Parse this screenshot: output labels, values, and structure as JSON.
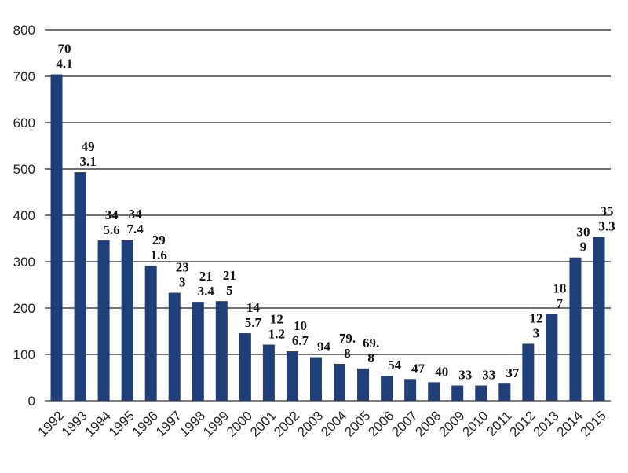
{
  "chart_data": {
    "type": "bar",
    "title": "",
    "xlabel": "",
    "ylabel": "",
    "ylim": [
      0,
      800
    ],
    "yticks": [
      0,
      100,
      200,
      300,
      400,
      500,
      600,
      700,
      800
    ],
    "grid": true,
    "bar_color": "#1f3f7a",
    "categories": [
      "1992",
      "1993",
      "1994",
      "1995",
      "1996",
      "1997",
      "1998",
      "1999",
      "2000",
      "2001",
      "2002",
      "2003",
      "2004",
      "2005",
      "2006",
      "2007",
      "2008",
      "2009",
      "2010",
      "2011",
      "2012",
      "2013",
      "2014",
      "2015"
    ],
    "values": [
      704.1,
      493.1,
      345.6,
      347.4,
      291.6,
      233,
      213.4,
      215,
      145.7,
      121.2,
      106.7,
      94,
      79.8,
      69.8,
      54,
      47,
      40,
      33,
      33,
      37,
      123,
      187,
      309,
      353.3
    ],
    "data_labels": [
      [
        "70",
        "4.1"
      ],
      [
        "49",
        "3.1"
      ],
      [
        "34",
        "5.6"
      ],
      [
        "34",
        "7.4"
      ],
      [
        "29",
        "1.6"
      ],
      [
        "23",
        "3"
      ],
      [
        "21",
        "3.4"
      ],
      [
        "21",
        "5"
      ],
      [
        "14",
        "5.7"
      ],
      [
        "12",
        "1.2"
      ],
      [
        "10",
        "6.7"
      ],
      [
        "94"
      ],
      [
        "79.",
        "8"
      ],
      [
        "69.",
        "8"
      ],
      [
        "54"
      ],
      [
        "47"
      ],
      [
        "40"
      ],
      [
        "33"
      ],
      [
        "33"
      ],
      [
        "37"
      ],
      [
        "12",
        "3"
      ],
      [
        "18",
        "7"
      ],
      [
        "30",
        "9"
      ],
      [
        "35",
        "3.3"
      ]
    ]
  }
}
